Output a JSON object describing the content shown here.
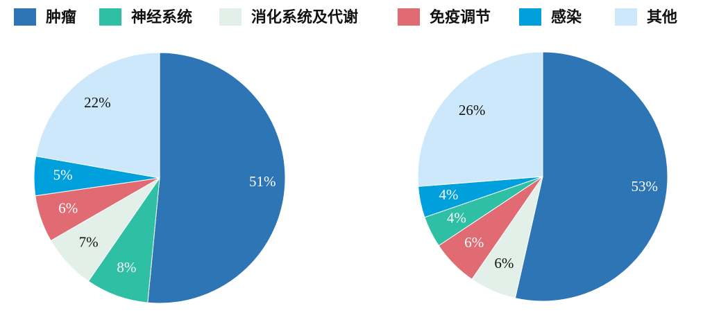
{
  "legend": [
    {
      "name": "肿瘤",
      "color": "#2e75b6"
    },
    {
      "name": "神经系统",
      "color": "#2ebfa5"
    },
    {
      "name": "消化系统及代谢",
      "color": "#e2f0e9"
    },
    {
      "name": "免疫调节",
      "color": "#e06b73"
    },
    {
      "name": "感染",
      "color": "#00a0dc"
    },
    {
      "name": "其他",
      "color": "#cce8fa"
    }
  ],
  "chart_data": [
    {
      "type": "pie",
      "values": [
        51,
        8,
        7,
        6,
        5,
        22
      ],
      "value_labels": [
        "51%",
        "8%",
        "7%",
        "6%",
        "5%",
        "22%"
      ],
      "colors": [
        "#2e75b6",
        "#2ebfa5",
        "#e2f0e9",
        "#e06b73",
        "#00a0dc",
        "#cce8fa"
      ]
    },
    {
      "type": "pie",
      "values": [
        53,
        6,
        6,
        4,
        4,
        26
      ],
      "value_labels": [
        "53%",
        "6%",
        "6%",
        "4%",
        "4%",
        "26%"
      ],
      "colors": [
        "#2e75b6",
        "#e2f0e9",
        "#e06b73",
        "#2ebfa5",
        "#00a0dc",
        "#cce8fa"
      ]
    }
  ]
}
